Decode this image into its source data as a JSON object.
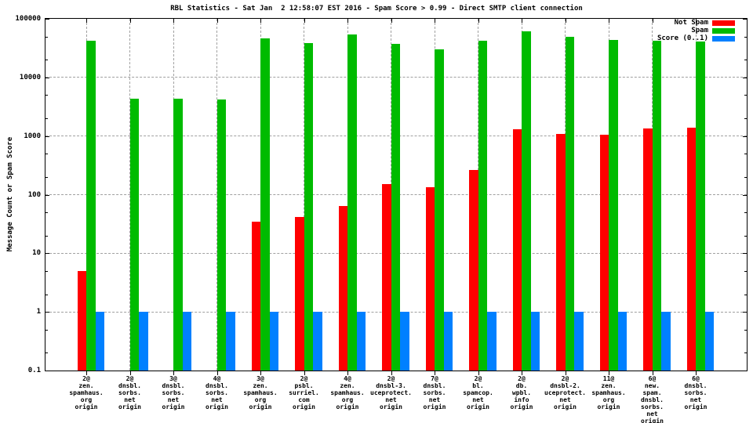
{
  "chart_data": {
    "type": "bar",
    "title": "RBL Statistics - Sat Jan  2 12:58:07 EST 2016 - Spam Score > 0.99 - Direct SMTP client connection",
    "ylabel": "Message Count or Spam Score",
    "y_scale": "log",
    "ylim": [
      0.1,
      100000
    ],
    "y_ticks": [
      {
        "value": 100000,
        "label": "100000"
      },
      {
        "value": 10000,
        "label": "10000"
      },
      {
        "value": 1000,
        "label": "1000"
      },
      {
        "value": 100,
        "label": "100"
      },
      {
        "value": 10,
        "label": "10"
      },
      {
        "value": 1,
        "label": "1"
      },
      {
        "value": 0.1,
        "label": "0.1"
      }
    ],
    "grid": true,
    "legend_position": "top-right-inside",
    "categories": [
      [
        "2@",
        "zen.",
        "spamhaus.",
        "org",
        "origin"
      ],
      [
        "2@",
        "dnsbl.",
        "sorbs.",
        "net",
        "origin"
      ],
      [
        "3@",
        "dnsbl.",
        "sorbs.",
        "net",
        "origin"
      ],
      [
        "4@",
        "dnsbl.",
        "sorbs.",
        "net",
        "origin"
      ],
      [
        "3@",
        "zen.",
        "spamhaus.",
        "org",
        "origin"
      ],
      [
        "2@",
        "psbl.",
        "surriel.",
        "com",
        "origin"
      ],
      [
        "4@",
        "zen.",
        "spamhaus.",
        "org",
        "origin"
      ],
      [
        "2@",
        "dnsbl-3.",
        "uceprotect.",
        "net",
        "origin"
      ],
      [
        "7@",
        "dnsbl.",
        "sorbs.",
        "net",
        "origin"
      ],
      [
        "2@",
        "bl.",
        "spamcop.",
        "net",
        "origin"
      ],
      [
        "2@",
        "db.",
        "wpbl.",
        "info",
        "origin"
      ],
      [
        "2@",
        "dnsbl-2.",
        "uceprotect.",
        "net",
        "origin"
      ],
      [
        "11@",
        "zen.",
        "spamhaus.",
        "org",
        "origin"
      ],
      [
        "6@",
        "new.",
        "spam.",
        "dnsbl.",
        "sorbs.",
        "net",
        "origin"
      ],
      [
        "6@",
        "dnsbl.",
        "sorbs.",
        "net",
        "origin"
      ]
    ],
    "series": [
      {
        "name": "Not Spam",
        "color": "#ff0000",
        "values": [
          5,
          null,
          null,
          null,
          35,
          42,
          65,
          150,
          135,
          260,
          1300,
          1080,
          1040,
          1350,
          1380
        ]
      },
      {
        "name": "Spam",
        "color": "#00bb00",
        "values": [
          42500,
          4280,
          4280,
          4150,
          46000,
          39000,
          54000,
          37000,
          30000,
          42000,
          62000,
          49500,
          44000,
          42500,
          41500
        ]
      },
      {
        "name": "Score (0..1)",
        "color": "#0080ff",
        "values": [
          1,
          1,
          1,
          1,
          1,
          1,
          1,
          1,
          1,
          1,
          1,
          1,
          1,
          1,
          1
        ]
      }
    ]
  }
}
